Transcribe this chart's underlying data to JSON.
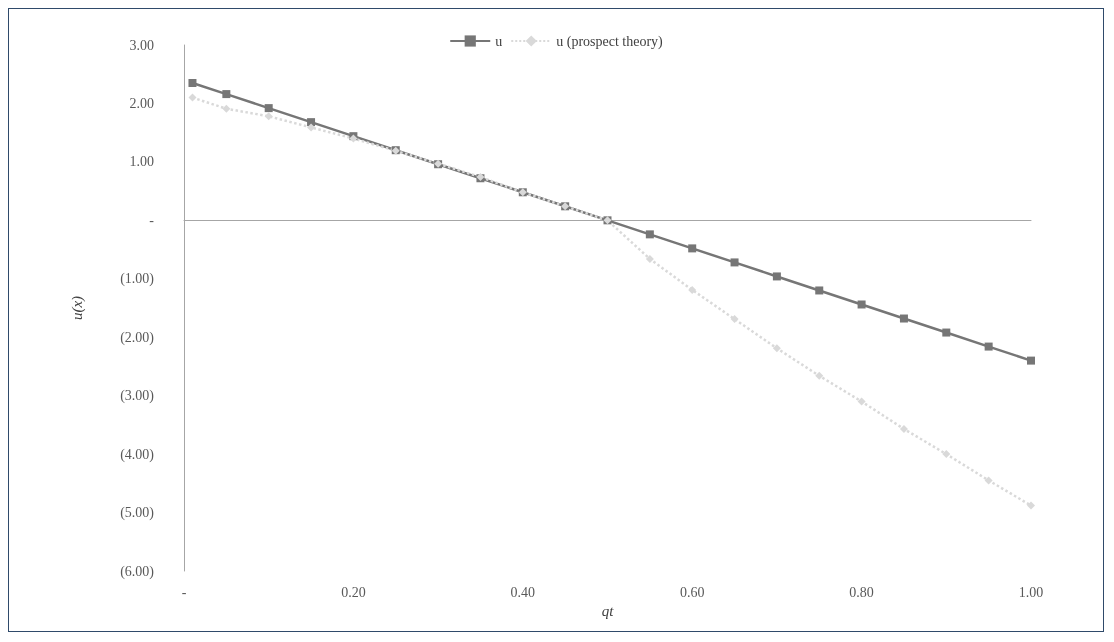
{
  "chart_data": {
    "type": "line",
    "xlabel": "qt",
    "ylabel": "u(x)",
    "x": [
      0.01,
      0.05,
      0.1,
      0.15,
      0.2,
      0.25,
      0.3,
      0.35,
      0.4,
      0.45,
      0.5,
      0.55,
      0.6,
      0.65,
      0.7,
      0.75,
      0.8,
      0.85,
      0.9,
      0.95,
      1.0
    ],
    "series": [
      {
        "name": "u",
        "color": "#767676",
        "marker": "square",
        "line_style": "solid",
        "values": [
          2.35,
          2.16,
          1.92,
          1.68,
          1.44,
          1.2,
          0.96,
          0.72,
          0.48,
          0.24,
          0.0,
          -0.24,
          -0.48,
          -0.72,
          -0.96,
          -1.2,
          -1.44,
          -1.68,
          -1.92,
          -2.16,
          -2.4
        ]
      },
      {
        "name": "u (prospect theory)",
        "color": "#d9d9d9",
        "marker": "diamond",
        "line_style": "dotted",
        "values": [
          2.1,
          1.91,
          1.78,
          1.59,
          1.4,
          1.19,
          0.97,
          0.74,
          0.48,
          0.24,
          0.0,
          -0.66,
          -1.19,
          -1.69,
          -2.19,
          -2.66,
          -3.1,
          -3.57,
          -4.0,
          -4.45,
          -4.88
        ]
      }
    ],
    "xlim": [
      0,
      1
    ],
    "xticks": [
      {
        "value": 0,
        "label": "-"
      },
      {
        "value": 0.2,
        "label": "0.20"
      },
      {
        "value": 0.4,
        "label": "0.40"
      },
      {
        "value": 0.6,
        "label": "0.60"
      },
      {
        "value": 0.8,
        "label": "0.80"
      },
      {
        "value": 1,
        "label": "1.00"
      }
    ],
    "ylim": [
      -6,
      3
    ],
    "yticks": [
      {
        "value": -6,
        "label": "(6.00)"
      },
      {
        "value": -5,
        "label": "(5.00)"
      },
      {
        "value": -4,
        "label": "(4.00)"
      },
      {
        "value": -3,
        "label": "(3.00)"
      },
      {
        "value": -2,
        "label": "(2.00)"
      },
      {
        "value": -1,
        "label": "(1.00)"
      },
      {
        "value": 0,
        "label": "-"
      },
      {
        "value": 1,
        "label": "1.00"
      },
      {
        "value": 2,
        "label": "2.00"
      },
      {
        "value": 3,
        "label": "3.00"
      }
    ],
    "legend": "top"
  }
}
